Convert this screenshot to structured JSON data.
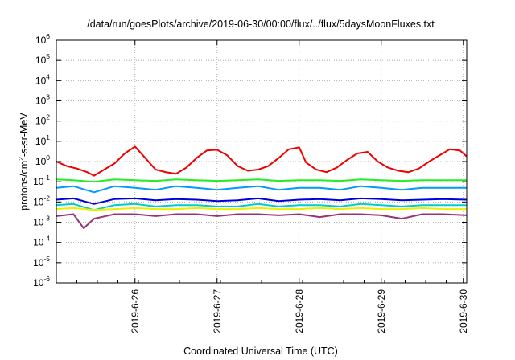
{
  "chart_data": {
    "type": "line",
    "title": "/data/run/goesPlots/archive/2019-06-30/00:00/flux/../flux/5daysMoonFluxes.txt",
    "xlabel": "Coordinated Universal Time (UTC)",
    "ylabel": {
      "base": "protons/cm",
      "sup": "2",
      "rest": "-s-sr-MeV"
    },
    "scale_y": "log",
    "ylim": [
      1e-06,
      1000000.0
    ],
    "xlim": [
      "2019-06-25T01:00",
      "2019-06-30T01:00"
    ],
    "x_ticks": [
      "2019-6-26",
      "2019-6-27",
      "2019-6-28",
      "2019-6-29",
      "2019-6-30"
    ],
    "y_ticks": [
      {
        "base": "10",
        "exp": "-6"
      },
      {
        "base": "10",
        "exp": "-5"
      },
      {
        "base": "10",
        "exp": "-4"
      },
      {
        "base": "10",
        "exp": "-3"
      },
      {
        "base": "10",
        "exp": "-2"
      },
      {
        "base": "10",
        "exp": "-1"
      },
      {
        "base": "10",
        "exp": "0"
      },
      {
        "base": "10",
        "exp": "1"
      },
      {
        "base": "10",
        "exp": "2"
      },
      {
        "base": "10",
        "exp": "3"
      },
      {
        "base": "10",
        "exp": "4"
      },
      {
        "base": "10",
        "exp": "5"
      },
      {
        "base": "10",
        "exp": "6"
      }
    ],
    "grid": true,
    "series": [
      {
        "color": "#ee0000",
        "x": [
          "2019-06-25T01:00",
          "2019-06-25T04:00",
          "2019-06-25T07:00",
          "2019-06-25T10:00",
          "2019-06-25T12:00",
          "2019-06-25T15:00",
          "2019-06-25T18:00",
          "2019-06-25T21:00",
          "2019-06-26T00:00",
          "2019-06-26T03:00",
          "2019-06-26T06:00",
          "2019-06-26T09:00",
          "2019-06-26T12:00",
          "2019-06-26T15:00",
          "2019-06-26T18:00",
          "2019-06-26T21:00",
          "2019-06-27T00:00",
          "2019-06-27T03:00",
          "2019-06-27T06:00",
          "2019-06-27T09:00",
          "2019-06-27T12:00",
          "2019-06-27T15:00",
          "2019-06-27T18:00",
          "2019-06-27T21:00",
          "2019-06-28T00:00",
          "2019-06-28T02:00",
          "2019-06-28T05:00",
          "2019-06-28T08:00",
          "2019-06-28T11:00",
          "2019-06-28T14:00",
          "2019-06-28T17:00",
          "2019-06-28T20:00",
          "2019-06-28T23:00",
          "2019-06-29T02:00",
          "2019-06-29T05:00",
          "2019-06-29T08:00",
          "2019-06-29T11:00",
          "2019-06-29T14:00",
          "2019-06-29T17:00",
          "2019-06-29T20:00",
          "2019-06-29T23:00",
          "2019-06-30T01:00"
        ],
        "values": [
          1.0,
          0.6,
          0.45,
          0.3,
          0.2,
          0.4,
          0.8,
          2.5,
          5.5,
          1.5,
          0.4,
          0.3,
          0.25,
          0.5,
          1.5,
          3.5,
          3.8,
          2.0,
          0.6,
          0.35,
          0.4,
          0.6,
          1.5,
          4.0,
          5.0,
          0.9,
          0.4,
          0.3,
          0.5,
          1.2,
          2.5,
          3.0,
          1.0,
          0.5,
          0.35,
          0.3,
          0.45,
          1.0,
          2.0,
          4.0,
          3.5,
          1.8
        ]
      },
      {
        "color": "#22ee22",
        "x": [
          "2019-06-25T01:00",
          "2019-06-25T06:00",
          "2019-06-25T12:00",
          "2019-06-25T18:00",
          "2019-06-26T00:00",
          "2019-06-26T06:00",
          "2019-06-26T12:00",
          "2019-06-26T18:00",
          "2019-06-27T00:00",
          "2019-06-27T06:00",
          "2019-06-27T12:00",
          "2019-06-27T18:00",
          "2019-06-28T00:00",
          "2019-06-28T06:00",
          "2019-06-28T12:00",
          "2019-06-28T18:00",
          "2019-06-29T00:00",
          "2019-06-29T06:00",
          "2019-06-29T12:00",
          "2019-06-29T18:00",
          "2019-06-30T01:00"
        ],
        "values": [
          0.13,
          0.12,
          0.1,
          0.13,
          0.12,
          0.11,
          0.13,
          0.12,
          0.11,
          0.12,
          0.13,
          0.11,
          0.12,
          0.12,
          0.11,
          0.13,
          0.12,
          0.11,
          0.12,
          0.12,
          0.12
        ]
      },
      {
        "color": "#0099ff",
        "x": [
          "2019-06-25T01:00",
          "2019-06-25T06:00",
          "2019-06-25T12:00",
          "2019-06-25T18:00",
          "2019-06-26T00:00",
          "2019-06-26T06:00",
          "2019-06-26T12:00",
          "2019-06-26T18:00",
          "2019-06-27T00:00",
          "2019-06-27T06:00",
          "2019-06-27T12:00",
          "2019-06-27T18:00",
          "2019-06-28T00:00",
          "2019-06-28T06:00",
          "2019-06-28T12:00",
          "2019-06-28T18:00",
          "2019-06-29T00:00",
          "2019-06-29T06:00",
          "2019-06-29T12:00",
          "2019-06-29T18:00",
          "2019-06-30T01:00"
        ],
        "values": [
          0.05,
          0.06,
          0.03,
          0.06,
          0.05,
          0.04,
          0.06,
          0.05,
          0.04,
          0.05,
          0.06,
          0.04,
          0.05,
          0.05,
          0.04,
          0.06,
          0.05,
          0.04,
          0.05,
          0.05,
          0.05
        ]
      },
      {
        "color": "#0000dd",
        "x": [
          "2019-06-25T01:00",
          "2019-06-25T06:00",
          "2019-06-25T12:00",
          "2019-06-25T18:00",
          "2019-06-26T00:00",
          "2019-06-26T06:00",
          "2019-06-26T12:00",
          "2019-06-26T18:00",
          "2019-06-27T00:00",
          "2019-06-27T06:00",
          "2019-06-27T12:00",
          "2019-06-27T18:00",
          "2019-06-28T00:00",
          "2019-06-28T06:00",
          "2019-06-28T12:00",
          "2019-06-28T18:00",
          "2019-06-29T00:00",
          "2019-06-29T06:00",
          "2019-06-29T12:00",
          "2019-06-29T18:00",
          "2019-06-30T01:00"
        ],
        "values": [
          0.013,
          0.015,
          0.008,
          0.014,
          0.015,
          0.012,
          0.014,
          0.013,
          0.011,
          0.012,
          0.015,
          0.011,
          0.013,
          0.014,
          0.012,
          0.015,
          0.014,
          0.012,
          0.013,
          0.014,
          0.013
        ]
      },
      {
        "color": "#00cccc",
        "x": [
          "2019-06-25T01:00",
          "2019-06-25T06:00",
          "2019-06-25T12:00",
          "2019-06-25T18:00",
          "2019-06-26T00:00",
          "2019-06-26T06:00",
          "2019-06-26T12:00",
          "2019-06-26T18:00",
          "2019-06-27T00:00",
          "2019-06-27T06:00",
          "2019-06-27T12:00",
          "2019-06-27T18:00",
          "2019-06-28T00:00",
          "2019-06-28T06:00",
          "2019-06-28T12:00",
          "2019-06-28T18:00",
          "2019-06-29T00:00",
          "2019-06-29T06:00",
          "2019-06-29T12:00",
          "2019-06-29T18:00",
          "2019-06-30T01:00"
        ],
        "values": [
          0.007,
          0.008,
          0.004,
          0.007,
          0.008,
          0.006,
          0.007,
          0.007,
          0.006,
          0.006,
          0.008,
          0.006,
          0.007,
          0.007,
          0.006,
          0.008,
          0.007,
          0.006,
          0.007,
          0.007,
          0.007
        ]
      },
      {
        "color": "#eeee00",
        "x": [
          "2019-06-25T01:00",
          "2019-06-25T06:00",
          "2019-06-25T12:00",
          "2019-06-25T18:00",
          "2019-06-26T00:00",
          "2019-06-26T06:00",
          "2019-06-26T12:00",
          "2019-06-26T18:00",
          "2019-06-27T00:00",
          "2019-06-27T06:00",
          "2019-06-27T12:00",
          "2019-06-27T18:00",
          "2019-06-28T00:00",
          "2019-06-28T06:00",
          "2019-06-28T12:00",
          "2019-06-28T18:00",
          "2019-06-29T00:00",
          "2019-06-29T06:00",
          "2019-06-29T12:00",
          "2019-06-29T18:00",
          "2019-06-30T01:00"
        ],
        "values": [
          0.0045,
          0.005,
          0.004,
          0.0045,
          0.005,
          0.0045,
          0.0045,
          0.005,
          0.0045,
          0.0045,
          0.005,
          0.0045,
          0.0045,
          0.005,
          0.0045,
          0.005,
          0.0045,
          0.0045,
          0.005,
          0.0045,
          0.0045
        ]
      },
      {
        "color": "#993377",
        "x": [
          "2019-06-25T01:00",
          "2019-06-25T06:00",
          "2019-06-25T09:00",
          "2019-06-25T12:00",
          "2019-06-25T18:00",
          "2019-06-26T00:00",
          "2019-06-26T06:00",
          "2019-06-26T12:00",
          "2019-06-26T18:00",
          "2019-06-27T00:00",
          "2019-06-27T06:00",
          "2019-06-27T12:00",
          "2019-06-27T18:00",
          "2019-06-28T00:00",
          "2019-06-28T06:00",
          "2019-06-28T12:00",
          "2019-06-28T18:00",
          "2019-06-29T00:00",
          "2019-06-29T06:00",
          "2019-06-29T12:00",
          "2019-06-29T18:00",
          "2019-06-30T01:00"
        ],
        "values": [
          0.002,
          0.0025,
          0.0005,
          0.0015,
          0.0025,
          0.0025,
          0.002,
          0.0025,
          0.0025,
          0.002,
          0.0025,
          0.0025,
          0.0022,
          0.0025,
          0.0018,
          0.0025,
          0.0025,
          0.0022,
          0.0015,
          0.0025,
          0.0025,
          0.0022
        ]
      }
    ]
  }
}
